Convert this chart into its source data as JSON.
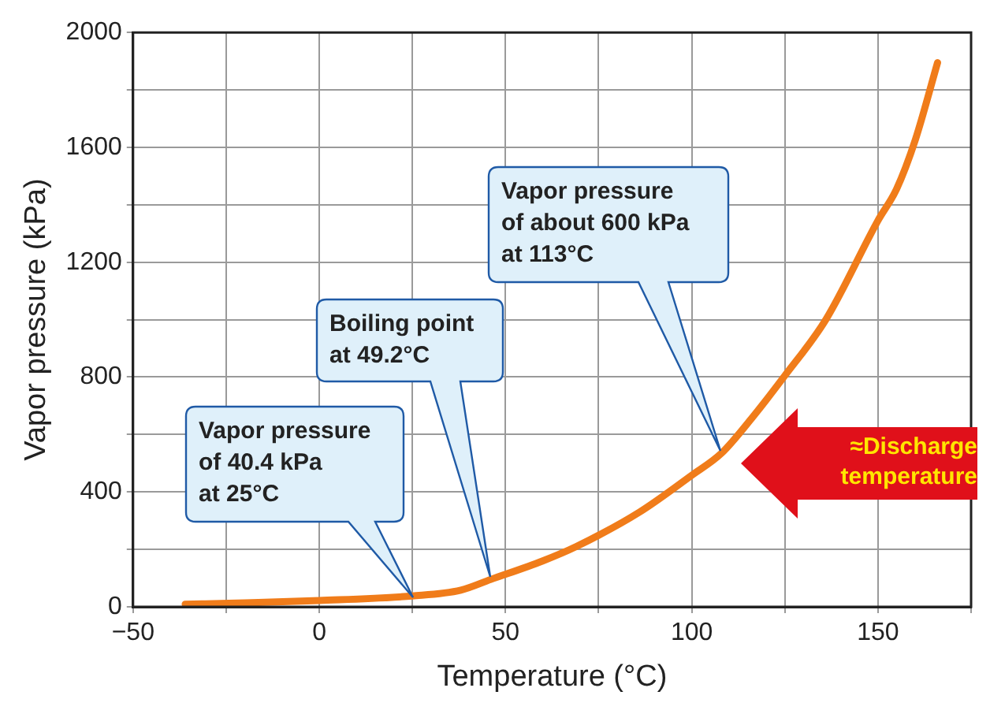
{
  "chart_data": {
    "type": "line",
    "xlabel": "Temperature (°C)",
    "ylabel": "Vapor pressure (kPa)",
    "x": [
      -36,
      -20,
      0,
      25,
      38,
      46,
      60,
      69,
      86,
      100,
      108,
      116,
      125,
      136,
      150,
      155,
      160,
      166
    ],
    "series": [
      {
        "color": "#f07c1a",
        "values": [
          9,
          14,
          22,
          38,
          58,
          95,
          160,
          210,
          330,
          458,
          535,
          655,
          805,
          1000,
          1345,
          1455,
          1625,
          1895
        ]
      }
    ],
    "xlim": [
      -50,
      175
    ],
    "xticks": [
      {
        "value": -50,
        "label": "−50"
      },
      {
        "value": -25,
        "label": null
      },
      0,
      {
        "value": 25,
        "label": null
      },
      50,
      {
        "value": 75,
        "label": null
      },
      100,
      {
        "value": 125,
        "label": null
      },
      150,
      {
        "value": 175,
        "label": null
      }
    ],
    "ylim": [
      0,
      2000
    ],
    "yticks": [
      0,
      {
        "value": 200,
        "label": null
      },
      400,
      {
        "value": 600,
        "label": null
      },
      800,
      {
        "value": 1000,
        "label": null
      },
      1200,
      {
        "value": 1400,
        "label": null
      },
      1600,
      {
        "value": 1800,
        "label": null
      },
      2000
    ],
    "grid": true,
    "annotations": [
      "Vapor pressure\nof 40.4 kPa\nat 25°C",
      "Boiling point\nat 49.2°C",
      "Vapor pressure\nof about 600 kPa\nat 113°C",
      "≈Discharge\ntemperature"
    ]
  }
}
